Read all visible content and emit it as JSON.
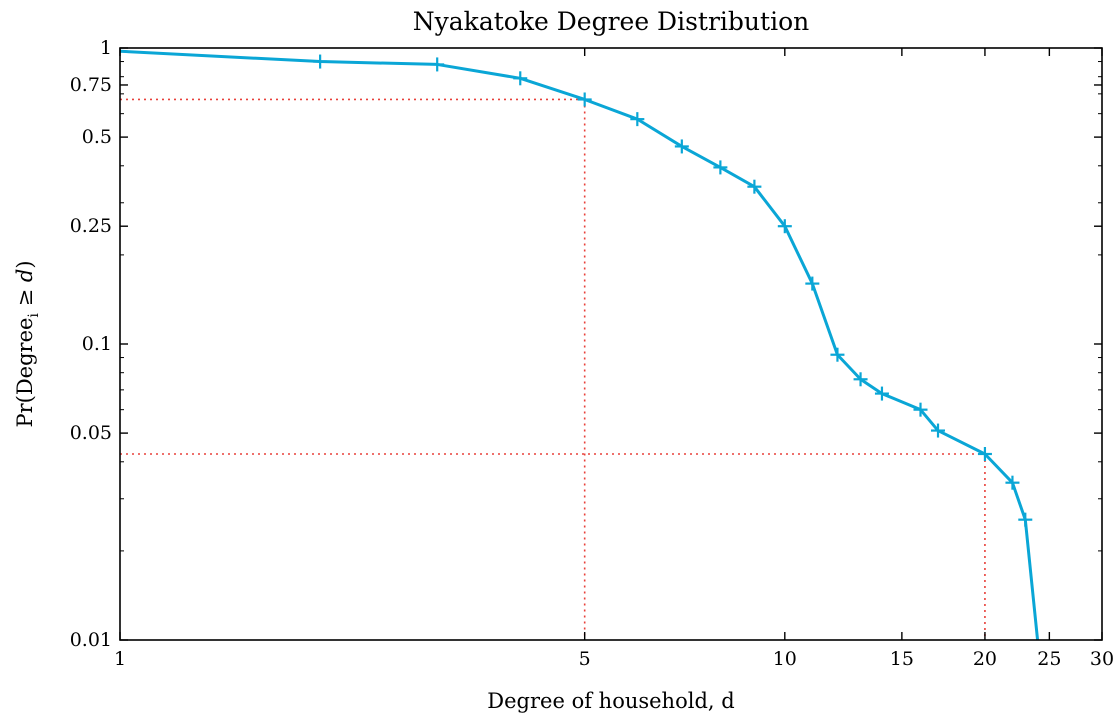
{
  "chart_data": {
    "type": "line",
    "title": "Nyakatoke Degree Distribution",
    "xlabel": "Degree of household, d",
    "ylabel": "Pr(Degree",
    "ylabel_sub": "i",
    "ylabel_rest": " ≥ ",
    "ylabel_var": "d",
    "ylabel_close": ")",
    "x_scale": "log",
    "y_scale": "log",
    "xlim": [
      1,
      30
    ],
    "ylim": [
      0.01,
      1
    ],
    "x_ticks": [
      {
        "value": 1,
        "label": "1"
      },
      {
        "value": 5,
        "label": "5"
      },
      {
        "value": 10,
        "label": "10"
      },
      {
        "value": 15,
        "label": "15"
      },
      {
        "value": 20,
        "label": "20"
      },
      {
        "value": 25,
        "label": "25"
      },
      {
        "value": 30,
        "label": "30"
      }
    ],
    "y_ticks": [
      {
        "value": 0.01,
        "label": "0.01"
      },
      {
        "value": 0.05,
        "label": "0.05"
      },
      {
        "value": 0.1,
        "label": "0.1"
      },
      {
        "value": 0.25,
        "label": "0.25"
      },
      {
        "value": 0.5,
        "label": "0.5"
      },
      {
        "value": 0.75,
        "label": "0.75"
      },
      {
        "value": 1,
        "label": "1"
      }
    ],
    "y_minor_ticks": [
      0.02,
      0.03,
      0.04,
      0.06,
      0.07,
      0.08,
      0.09,
      0.2,
      0.3,
      0.4,
      0.6,
      0.7,
      0.8,
      0.9
    ],
    "grid": false,
    "series": [
      {
        "color": "#0aa6d6",
        "marker": "plus",
        "points": [
          {
            "x": 1,
            "y": 0.975,
            "marker": false
          },
          {
            "x": 2,
            "y": 0.9,
            "marker": true
          },
          {
            "x": 3,
            "y": 0.88,
            "marker": true
          },
          {
            "x": 4,
            "y": 0.79,
            "marker": true
          },
          {
            "x": 5,
            "y": 0.67,
            "marker": true
          },
          {
            "x": 6,
            "y": 0.575,
            "marker": true
          },
          {
            "x": 7,
            "y": 0.465,
            "marker": true
          },
          {
            "x": 8,
            "y": 0.395,
            "marker": true
          },
          {
            "x": 9,
            "y": 0.34,
            "marker": true
          },
          {
            "x": 10,
            "y": 0.25,
            "marker": true
          },
          {
            "x": 11,
            "y": 0.16,
            "marker": true
          },
          {
            "x": 12,
            "y": 0.092,
            "marker": true
          },
          {
            "x": 13,
            "y": 0.076,
            "marker": true
          },
          {
            "x": 14,
            "y": 0.068,
            "marker": true
          },
          {
            "x": 16,
            "y": 0.06,
            "marker": true
          },
          {
            "x": 17,
            "y": 0.051,
            "marker": true
          },
          {
            "x": 20,
            "y": 0.0425,
            "marker": true
          },
          {
            "x": 22,
            "y": 0.034,
            "marker": true
          },
          {
            "x": 23,
            "y": 0.0255,
            "marker": true
          },
          {
            "x": 24,
            "y": 0.01,
            "marker": false
          }
        ]
      }
    ],
    "reference_lines": {
      "color": "#e8403a",
      "style": "dotted",
      "points": [
        {
          "x": 5,
          "y": 0.67
        },
        {
          "x": 20,
          "y": 0.0425
        }
      ]
    }
  }
}
